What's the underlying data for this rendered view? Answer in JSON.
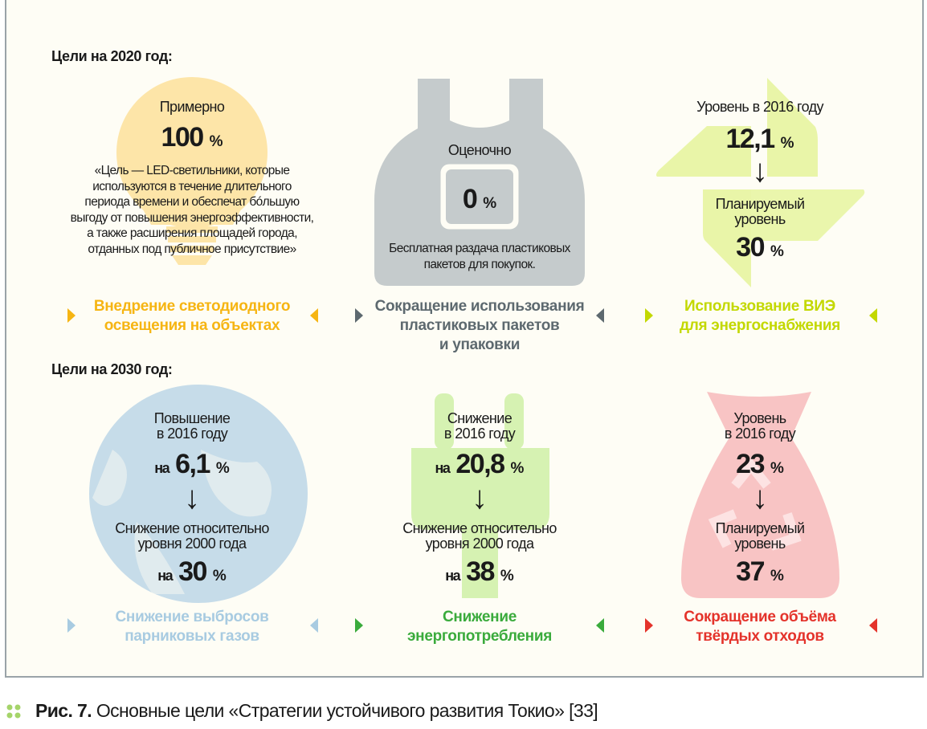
{
  "colors": {
    "led": "#f6b513",
    "plastic": "#5d696f",
    "res": "#c3d800",
    "ghg": "#a8cbe1",
    "energy": "#3aab3c",
    "waste": "#e4332b"
  },
  "section_2020": "Цели на 2020 год:",
  "section_2030": "Цели на 2030 год:",
  "led": {
    "pre": "Примерно",
    "value": "100",
    "unit": "%",
    "quote": [
      "«Цель — LED-светильники, которые",
      "используются в течение длительного",
      "периода времени и обеспечат бóльшую",
      "выгоду от повышения энергоэффективности,",
      "а также расширения площадей города,",
      "отданных под публичное присутствие»"
    ],
    "title": [
      "Внедрение светодиодного",
      "освещения на объектах"
    ],
    "icon": "lightbulb-icon"
  },
  "plastic": {
    "pre": "Оценочно",
    "value": "0",
    "unit": "%",
    "note": [
      "Бесплатная раздача пластиковых",
      "пакетов для покупок."
    ],
    "title": [
      "Сокращение использования",
      "пластиковых пакетов",
      "и упаковки"
    ],
    "icon": "plastic-bag-icon"
  },
  "res": {
    "pre": "Уровень в 2016 году",
    "value": "12,1",
    "unit": "%",
    "planned": [
      "Планируемый",
      "уровень"
    ],
    "target": "30",
    "title": [
      "Использование ВИЭ",
      "для энергоснабжения"
    ],
    "icon": "pinwheel-icon"
  },
  "ghg": {
    "pre": [
      "Повышение",
      "в 2016 году"
    ],
    "na": "на",
    "value": "6,1",
    "unit": "%",
    "planned": [
      "Снижение относительно",
      "уровня 2000 года"
    ],
    "target": "30",
    "title": [
      "Снижение выбросов",
      "парниковых газов"
    ],
    "icon": "globe-icon"
  },
  "energy": {
    "pre": [
      "Снижение",
      "в 2016 году"
    ],
    "na": "на",
    "value": "20,8",
    "unit": "%",
    "planned": [
      "Снижение относительно",
      "уровня 2000 года"
    ],
    "target": "38",
    "title": [
      "Снижение",
      "энергопотребления"
    ],
    "icon": "plug-icon"
  },
  "waste": {
    "pre": [
      "Уровень",
      "в 2016 году"
    ],
    "value": "23",
    "unit": "%",
    "planned": [
      "Планируемый",
      "уровень"
    ],
    "target": "37",
    "title": [
      "Сокращение объёма",
      "твёрдых отходов"
    ],
    "icon": "trash-bag-icon"
  },
  "caption": {
    "label": "Рис. 7.",
    "text": " Основные цели «Стратегии устойчивого развития Токио» [33]"
  }
}
